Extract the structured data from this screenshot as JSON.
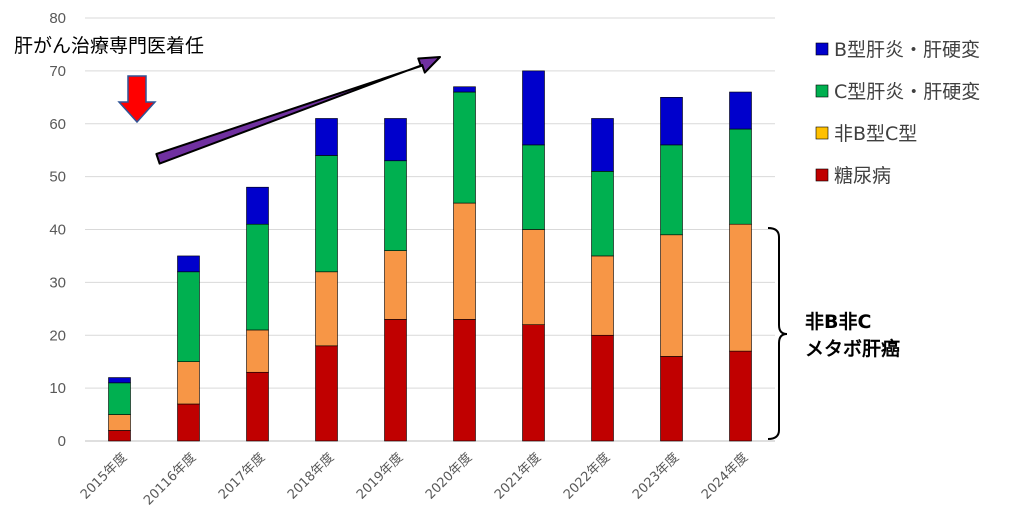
{
  "chart_data": {
    "type": "bar",
    "stacked": true,
    "title": "",
    "xlabel": "",
    "ylabel": "",
    "ylim": [
      0,
      80
    ],
    "yticks": [
      0,
      10,
      20,
      30,
      40,
      50,
      60,
      70,
      80
    ],
    "grid": true,
    "legend_position": "right",
    "categories": [
      "2015年度",
      "20116年度",
      "2017年度",
      "2018年度",
      "2019年度",
      "2020年度",
      "2021年度",
      "2022年度",
      "2023年度",
      "2024年度"
    ],
    "series": [
      {
        "name": "糖尿病",
        "color": "#C00000",
        "values": [
          2,
          7,
          13,
          18,
          23,
          23,
          22,
          20,
          16,
          17
        ]
      },
      {
        "name": "非B型C型",
        "color": "#F79646",
        "values": [
          3,
          8,
          8,
          14,
          13,
          22,
          18,
          15,
          23,
          24
        ]
      },
      {
        "name": "C型肝炎・肝硬変",
        "color": "#00B050",
        "values": [
          6,
          17,
          20,
          22,
          17,
          21,
          16,
          16,
          17,
          18
        ]
      },
      {
        "name": "B型肝炎・肝硬変",
        "color": "#0000CC",
        "values": [
          1,
          3,
          7,
          7,
          8,
          1,
          14,
          10,
          9,
          7
        ]
      }
    ],
    "legend": [
      {
        "label": "B型肝炎・肝硬変",
        "color": "#0000CC"
      },
      {
        "label": "C型肝炎・肝硬変",
        "color": "#00B050"
      },
      {
        "label": "非B型C型",
        "color": "#FFC000"
      },
      {
        "label": "糖尿病",
        "color": "#C00000"
      }
    ],
    "annotations": {
      "top_left_label": "肝がん治療専門医着任",
      "bracket_line1": "非B非C",
      "bracket_line2": "メタボ肝癌",
      "down_arrow_color": "#FF0000",
      "trend_arrow_color": "#7030A0"
    }
  }
}
